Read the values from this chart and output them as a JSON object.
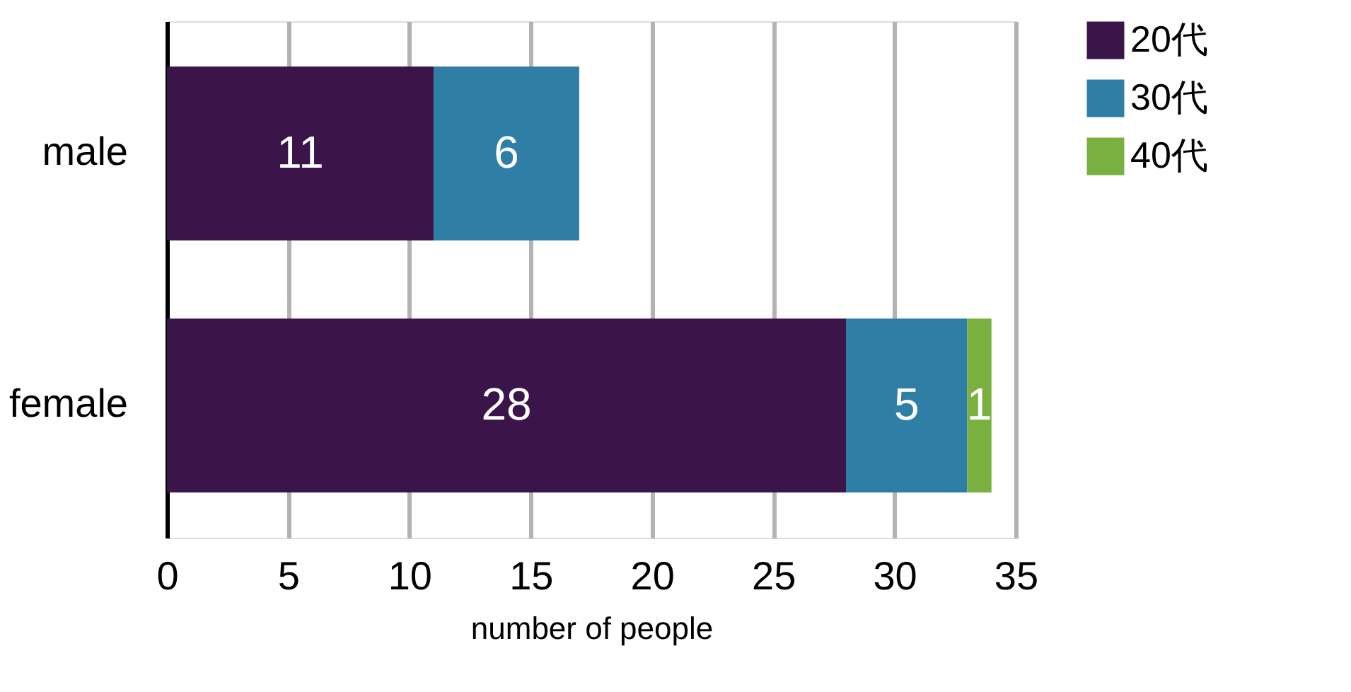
{
  "chart_data": {
    "type": "bar",
    "orientation": "horizontal",
    "stacked": true,
    "categories": [
      "male",
      "female"
    ],
    "series": [
      {
        "name": "20代",
        "color": "#3b1549",
        "values": [
          11,
          28
        ]
      },
      {
        "name": "30代",
        "color": "#2e7ea6",
        "values": [
          6,
          5
        ]
      },
      {
        "name": "40代",
        "color": "#7ab03f",
        "values": [
          null,
          1
        ]
      }
    ],
    "xlabel": "number of people",
    "xlim": [
      0,
      35
    ],
    "xticks": [
      0,
      5,
      10,
      15,
      20,
      25,
      30,
      35
    ],
    "grid": "x",
    "legend": "top right",
    "data_labels": true
  }
}
